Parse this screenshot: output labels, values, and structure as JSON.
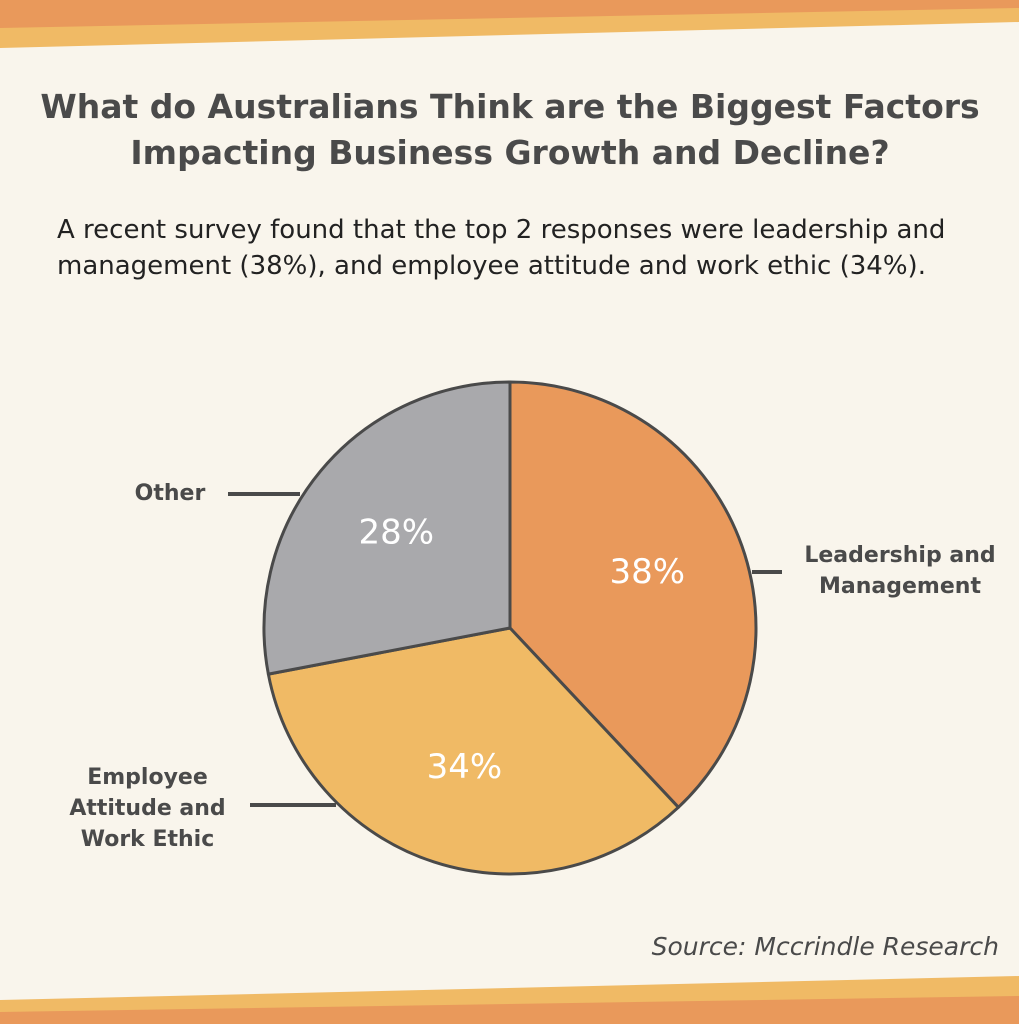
{
  "chart_data": {
    "type": "pie",
    "title": "What do Australians Think are the Biggest Factors Impacting Business Growth and Decline?",
    "subtitle": "A recent survey found that the top 2 responses were leadership and management (38%), and employee attitude and work ethic (34%).",
    "categories": [
      "Leadership and Management",
      "Employee Attitude and Work Ethic",
      "Other"
    ],
    "values": [
      38,
      34,
      28
    ],
    "value_labels": [
      "38%",
      "34%",
      "28%"
    ],
    "colors": [
      "#e9995b",
      "#f0ba65",
      "#a9a9ac"
    ],
    "source": "Source: Mccrindle Research"
  }
}
